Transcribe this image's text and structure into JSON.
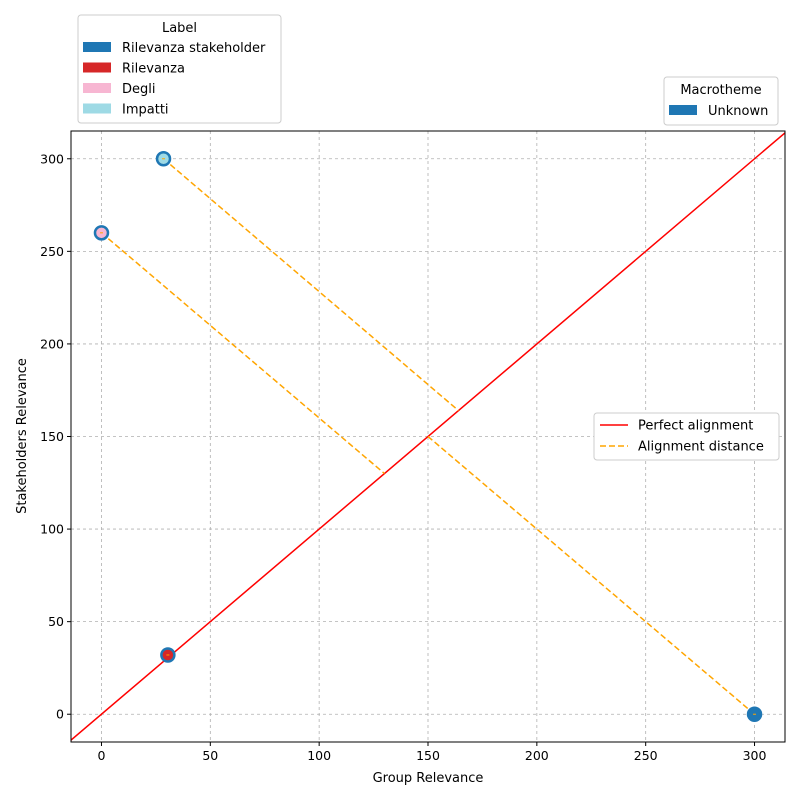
{
  "chart_data": {
    "type": "scatter",
    "xlabel": "Group Relevance",
    "ylabel": "Stakeholders Relevance",
    "xlim": [
      -14,
      314
    ],
    "ylim": [
      -15,
      315
    ],
    "xticks": [
      0,
      50,
      100,
      150,
      200,
      250,
      300
    ],
    "yticks": [
      0,
      50,
      100,
      150,
      200,
      250,
      300
    ],
    "grid": true,
    "points": [
      {
        "x": 28.5,
        "y": 300,
        "edge": "#1f77b4",
        "fill": "#9edae5"
      },
      {
        "x": 0,
        "y": 260,
        "edge": "#1f77b4",
        "fill": "#f7b6d2"
      },
      {
        "x": 30.5,
        "y": 32,
        "edge": "#1f77b4",
        "fill": "#d62728"
      },
      {
        "x": 300,
        "y": 0,
        "edge": "#1f77b4",
        "fill": "#1f77b4"
      }
    ],
    "distance_lines": [
      {
        "from": [
          28.5,
          300
        ],
        "to": [
          164,
          164
        ]
      },
      {
        "from": [
          0,
          260
        ],
        "to": [
          130,
          130
        ]
      },
      {
        "from": [
          300,
          0
        ],
        "to": [
          150,
          150
        ]
      }
    ],
    "label_legend": {
      "title": "Label",
      "placement": "top-left outside",
      "items": [
        {
          "label": "Rilevanza stakeholder",
          "color": "#1f77b4"
        },
        {
          "label": "Rilevanza",
          "color": "#d62728"
        },
        {
          "label": "Degli",
          "color": "#f7b6d2"
        },
        {
          "label": "Impatti",
          "color": "#9edae5"
        }
      ]
    },
    "macrotheme_legend": {
      "title": "Macrotheme",
      "placement": "top-right outside",
      "items": [
        {
          "label": "Unknown",
          "color": "#1f77b4"
        }
      ]
    },
    "line_legend": {
      "placement": "center-right",
      "items": [
        {
          "label": "Perfect alignment",
          "color": "#ff0000",
          "style": "solid"
        },
        {
          "label": "Alignment distance",
          "color": "#ffa500",
          "style": "dashed"
        }
      ]
    }
  }
}
